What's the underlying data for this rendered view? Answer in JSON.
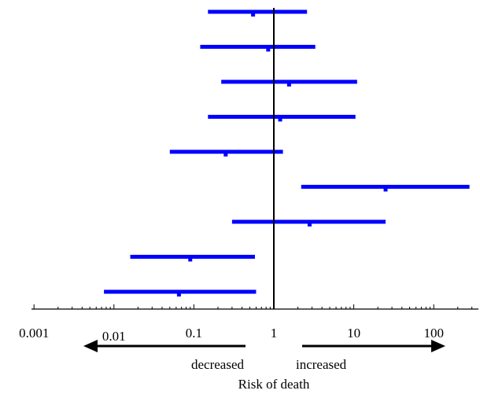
{
  "chart_data": {
    "type": "forest",
    "xlabel": "Risk of death",
    "x_scale": "log10",
    "xlim": [
      0.001,
      300
    ],
    "reference_line": 1,
    "tick_labels": [
      "0.001",
      "0.01",
      "0.1",
      "1",
      "10",
      "100"
    ],
    "tick_values": [
      0.001,
      0.01,
      0.1,
      1,
      10,
      100
    ],
    "direction_labels": {
      "left": "decreased",
      "right": "increased"
    },
    "series": [
      {
        "point": 0.55,
        "lower": 0.15,
        "upper": 2.6
      },
      {
        "point": 0.85,
        "lower": 0.12,
        "upper": 3.3
      },
      {
        "point": 1.55,
        "lower": 0.22,
        "upper": 11
      },
      {
        "point": 1.2,
        "lower": 0.15,
        "upper": 10.5
      },
      {
        "point": 0.25,
        "lower": 0.05,
        "upper": 1.3
      },
      {
        "point": 25,
        "lower": 2.2,
        "upper": 280
      },
      {
        "point": 2.8,
        "lower": 0.3,
        "upper": 25
      },
      {
        "point": 0.09,
        "lower": 0.016,
        "upper": 0.58
      },
      {
        "point": 0.065,
        "lower": 0.0075,
        "upper": 0.6
      }
    ],
    "colors": {
      "interval": "#0000ff",
      "axis": "#000000"
    }
  }
}
